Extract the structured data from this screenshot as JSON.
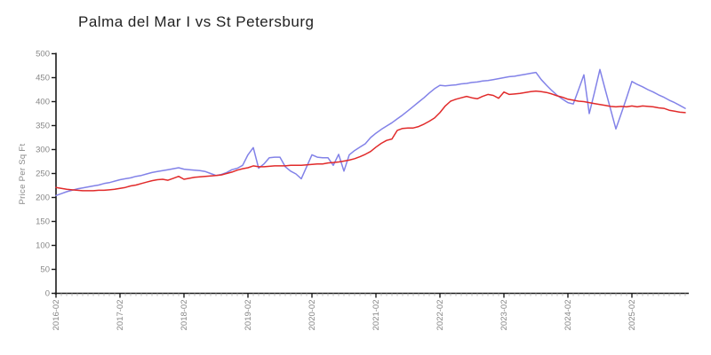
{
  "page": {
    "background": "#ffffff"
  },
  "chart_data": {
    "type": "line",
    "title": "Palma del Mar I vs St Petersburg",
    "xlabel": "",
    "ylabel": "Price Per Sq Ft",
    "ylim": [
      0,
      500
    ],
    "y_ticks": [
      0,
      50,
      100,
      150,
      200,
      250,
      300,
      350,
      400,
      450,
      500
    ],
    "x_start": "2016-02",
    "x_frequency": "monthly",
    "x_tick_labels": [
      "2016-02",
      "2017-02",
      "2018-02",
      "2019-02",
      "2020-02",
      "2021-02",
      "2022-02",
      "2023-02",
      "2024-02",
      "2025-02"
    ],
    "grid": false,
    "legend_position": "none",
    "series": [
      {
        "name": "Palma del Mar I",
        "color": "#8282e8",
        "values": [
          204,
          208,
          212,
          215,
          218,
          220,
          222,
          224,
          226,
          229,
          231,
          234,
          237,
          239,
          241,
          244,
          246,
          249,
          252,
          254,
          256,
          258,
          260,
          262,
          259,
          258,
          257,
          256,
          254,
          250,
          246,
          248,
          252,
          258,
          261,
          267,
          289,
          304,
          261,
          270,
          283,
          284,
          284,
          264,
          255,
          249,
          239,
          264,
          289,
          284,
          283,
          283,
          267,
          290,
          255,
          289,
          298,
          305,
          312,
          325,
          334,
          342,
          349,
          356,
          364,
          372,
          381,
          390,
          399,
          408,
          418,
          427,
          434,
          433,
          434,
          435,
          437,
          438,
          440,
          441,
          443,
          444,
          446,
          448,
          450,
          452,
          453,
          455,
          457,
          459,
          461,
          446,
          434,
          423,
          413,
          405,
          398,
          395,
          425,
          456,
          375,
          420,
          467,
          425,
          384,
          343,
          375,
          408,
          442,
          436,
          431,
          425,
          420,
          414,
          409,
          403,
          398,
          392,
          386
        ]
      },
      {
        "name": "St Petersburg",
        "color": "#e12a2a",
        "values": [
          221,
          219,
          217,
          216,
          215,
          214,
          214,
          214,
          215,
          215,
          216,
          217,
          219,
          221,
          224,
          226,
          229,
          232,
          235,
          237,
          238,
          236,
          240,
          244,
          238,
          240,
          242,
          243,
          244,
          245,
          246,
          247,
          250,
          253,
          257,
          260,
          262,
          266,
          264,
          264,
          265,
          266,
          266,
          266,
          267,
          267,
          267,
          268,
          269,
          270,
          270,
          272,
          273,
          274,
          276,
          278,
          281,
          285,
          290,
          296,
          305,
          313,
          319,
          322,
          340,
          344,
          345,
          345,
          348,
          353,
          359,
          366,
          377,
          391,
          401,
          405,
          408,
          411,
          408,
          406,
          411,
          415,
          413,
          407,
          420,
          415,
          416,
          417,
          419,
          421,
          422,
          421,
          419,
          416,
          412,
          409,
          405,
          403,
          401,
          400,
          398,
          396,
          394,
          392,
          390,
          389,
          390,
          389,
          391,
          389,
          391,
          390,
          389,
          387,
          386,
          382,
          380,
          378,
          377
        ]
      }
    ]
  },
  "styles": {
    "axis_color": "#1b1b1b",
    "tick_label_color": "#878787",
    "minor_tick_color": "#b5b5b5",
    "title_color": "#222222"
  }
}
